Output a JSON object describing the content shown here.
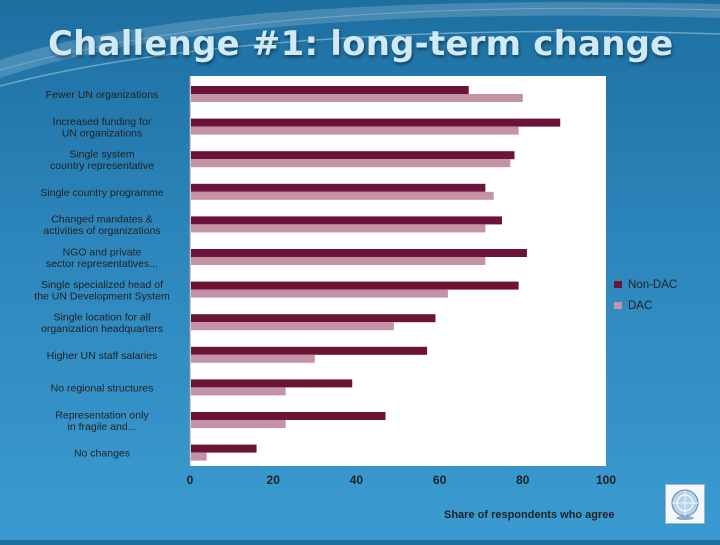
{
  "slide": {
    "title": "Challenge #1: long-term change"
  },
  "logo": {
    "icon": "un-emblem-icon"
  },
  "colors": {
    "background": "#2c86bc",
    "plot_bg": "#ffffff",
    "non_dac": "#6b1438",
    "dac": "#c493a7"
  },
  "chart_data": {
    "type": "bar",
    "orientation": "horizontal",
    "title": "",
    "xlabel": "Share of respondents who agree",
    "ylabel": "",
    "xlim": [
      0,
      100
    ],
    "xticks": [
      0,
      20,
      40,
      60,
      80,
      100
    ],
    "grid": false,
    "legend_position": "right",
    "categories": [
      [
        "Fewer UN organizations"
      ],
      [
        "Increased funding for",
        "UN organizations"
      ],
      [
        "Single system",
        "country representative"
      ],
      [
        "Single country programme"
      ],
      [
        "Changed mandates &",
        "activities of organizations"
      ],
      [
        "NGO and private",
        "sector representatives..."
      ],
      [
        "Single specialized head of",
        "the UN Development System"
      ],
      [
        "Single location for all",
        "organization headquarters"
      ],
      [
        "Higher UN staff salaries"
      ],
      [
        "No regional structures"
      ],
      [
        "Representation only",
        "in fragile and..."
      ],
      [
        "No changes"
      ]
    ],
    "series": [
      {
        "name": "Non-DAC",
        "values": [
          67,
          89,
          78,
          71,
          75,
          81,
          79,
          59,
          57,
          39,
          47,
          16
        ]
      },
      {
        "name": "DAC",
        "values": [
          80,
          79,
          77,
          73,
          71,
          71,
          62,
          49,
          30,
          23,
          23,
          4
        ]
      }
    ]
  }
}
